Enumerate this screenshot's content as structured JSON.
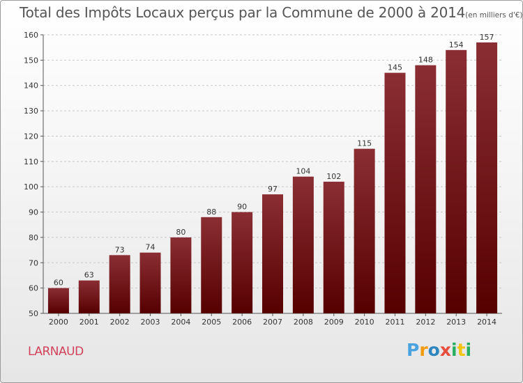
{
  "chart_data": {
    "type": "bar",
    "title": "Total des Impôts Locaux perçus par la Commune de 2000 à 2014",
    "title_unit": "(en milliers d'€)",
    "xlabel": "",
    "ylabel": "",
    "categories": [
      "2000",
      "2001",
      "2002",
      "2003",
      "2004",
      "2005",
      "2006",
      "2007",
      "2008",
      "2009",
      "2010",
      "2011",
      "2012",
      "2013",
      "2014"
    ],
    "values": [
      60,
      63,
      73,
      74,
      80,
      88,
      90,
      97,
      104,
      102,
      115,
      145,
      148,
      154,
      157
    ],
    "ylim": [
      50,
      160
    ],
    "yticks": [
      50,
      60,
      70,
      80,
      90,
      100,
      110,
      120,
      130,
      140,
      150,
      160
    ],
    "grid": true,
    "bar_color": "#7a1d24"
  },
  "commune_name": "LARNAUD",
  "logo": {
    "letters": [
      "P",
      "r",
      "o",
      "x",
      "i",
      "t",
      "i"
    ],
    "colors": [
      "#4aa3df",
      "#f39c12",
      "#2e86c1",
      "#e74c3c",
      "#27ae60",
      "#f1c40f",
      "#27ae60"
    ]
  }
}
